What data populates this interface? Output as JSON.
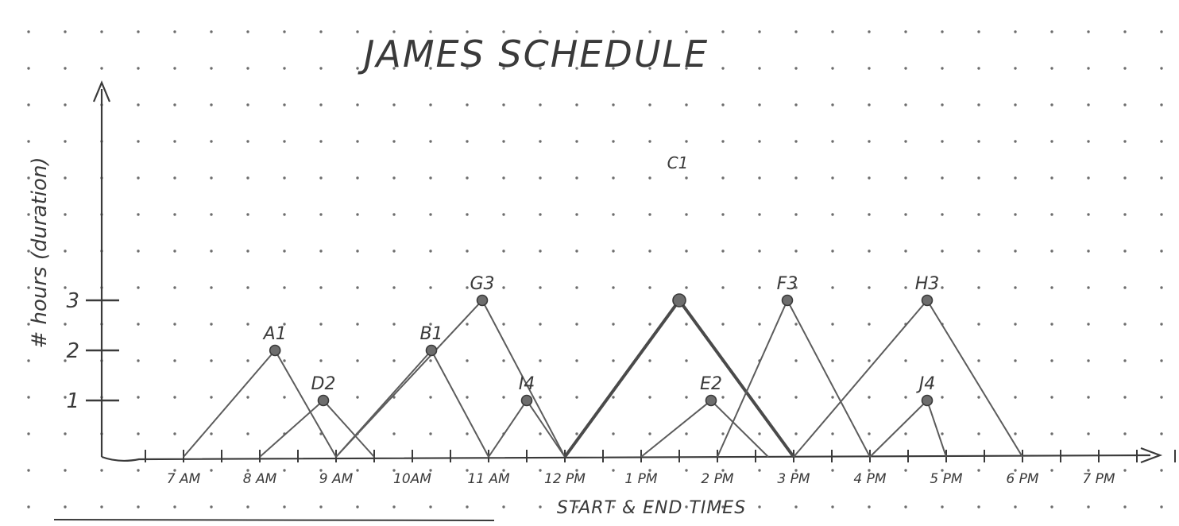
{
  "chart_data": {
    "type": "line",
    "title": "JAMES SCHEDULE",
    "xlabel": "START & END TIMES",
    "ylabel": "# hours (duration)",
    "x_ticks": [
      "7 AM",
      "8 AM",
      "9 AM",
      "10AM",
      "11 AM",
      "12 PM",
      "1 PM",
      "2 PM",
      "3 PM",
      "4 PM",
      "5 PM",
      "6 PM",
      "7 PM"
    ],
    "y_ticks": [
      1,
      2,
      3
    ],
    "ylim": [
      0,
      3
    ],
    "x_range": [
      "6:00 AM",
      "8:00 PM"
    ],
    "grid": "dotted",
    "stray_annotation": "C1",
    "series": [
      {
        "name": "A1",
        "start": "7:00 AM",
        "peak": "8:12 AM",
        "end": "9:00 AM",
        "duration": 2,
        "label": "A1"
      },
      {
        "name": "D2",
        "start": "8:00 AM",
        "peak": "8:50 AM",
        "end": "9:30 AM",
        "duration": 1,
        "label": "D2"
      },
      {
        "name": "B1",
        "start": "9:00 AM",
        "peak": "10:15 AM",
        "end": "11:00 AM",
        "duration": 2,
        "label": "B1"
      },
      {
        "name": "G3",
        "start": "9:00 AM",
        "peak": "10:55 AM",
        "end": "12:00 PM",
        "duration": 3,
        "label": "G3"
      },
      {
        "name": "I4",
        "start": "11:00 AM",
        "peak": "11:30 AM",
        "end": "12:00 PM",
        "duration": 1,
        "label": "I4"
      },
      {
        "name": "C1",
        "start": "12:00 PM",
        "peak": "1:30 PM",
        "end": "3:00 PM",
        "duration": 3,
        "label": ""
      },
      {
        "name": "E2",
        "start": "1:00 PM",
        "peak": "1:55 PM",
        "end": "2:40 PM",
        "duration": 1,
        "label": "E2"
      },
      {
        "name": "F3",
        "start": "2:00 PM",
        "peak": "2:55 PM",
        "end": "4:00 PM",
        "duration": 3,
        "label": "F3"
      },
      {
        "name": "H3",
        "start": "3:00 PM",
        "peak": "4:45 PM",
        "end": "6:00 PM",
        "duration": 3,
        "label": "H3"
      },
      {
        "name": "J4",
        "start": "4:00 PM",
        "peak": "4:45 PM",
        "end": "5:00 PM",
        "duration": 1,
        "label": "J4"
      }
    ]
  },
  "colors": {
    "paper": "#ffffff",
    "ink": "#3a3a3a",
    "line": "#5c5c5c",
    "bold_line": "#4a4a4a",
    "marker": "#6d6d6d",
    "grid_dot": "#2f2f2f"
  }
}
